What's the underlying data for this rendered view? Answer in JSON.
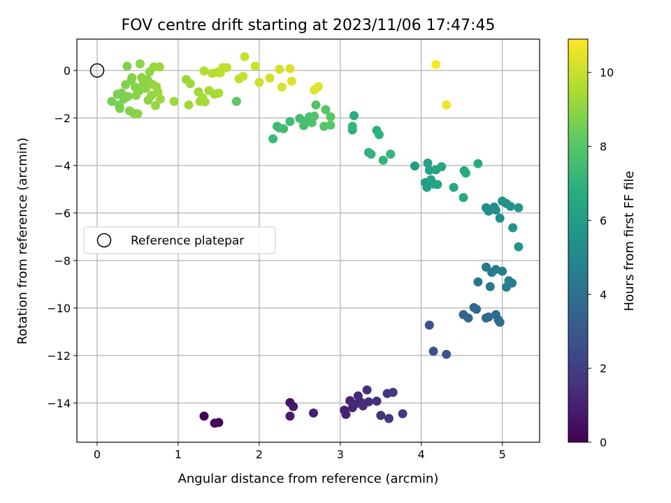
{
  "chart_data": {
    "type": "scatter",
    "title": "FOV centre drift starting at 2023/11/06 17:47:45",
    "xlabel": "Angular distance from reference (arcmin)",
    "ylabel": "Rotation from reference (arcmin)",
    "xlim": [
      -0.25,
      5.46
    ],
    "ylim": [
      -15.65,
      1.32
    ],
    "xticks": [
      0,
      1,
      2,
      3,
      4,
      5
    ],
    "yticks": [
      0,
      -2,
      -4,
      -6,
      -8,
      -10,
      -12,
      -14
    ],
    "grid": true,
    "legend": {
      "label": "Reference platepar",
      "position": "center-left"
    },
    "reference_point": {
      "x": 0,
      "y": 0
    },
    "colorbar": {
      "label": "Hours from first FF file",
      "min": 0,
      "max": 10.9,
      "ticks": [
        0,
        2,
        4,
        6,
        8,
        10
      ],
      "colormap": "viridis"
    },
    "series": [
      {
        "points": [
          [
            1.32,
            -14.55,
            0.05
          ],
          [
            1.45,
            -14.85,
            0.15
          ],
          [
            1.5,
            -14.82,
            0.2
          ],
          [
            2.38,
            -13.98,
            0.6
          ],
          [
            2.42,
            -14.15,
            0.7
          ],
          [
            2.38,
            -14.55,
            0.8
          ],
          [
            2.67,
            -14.42,
            0.9
          ],
          [
            3.05,
            -14.3,
            1.0
          ],
          [
            3.07,
            -14.48,
            1.05
          ],
          [
            3.12,
            -13.9,
            1.1
          ],
          [
            3.15,
            -14.2,
            1.15
          ],
          [
            3.18,
            -14.05,
            1.2
          ],
          [
            3.22,
            -13.7,
            1.25
          ],
          [
            3.25,
            -13.95,
            1.3
          ],
          [
            3.28,
            -14.12,
            1.35
          ],
          [
            3.33,
            -13.45,
            1.4
          ],
          [
            3.35,
            -13.95,
            1.45
          ],
          [
            3.45,
            -13.92,
            1.55
          ],
          [
            3.5,
            -14.52,
            1.6
          ],
          [
            3.58,
            -13.6,
            1.65
          ],
          [
            3.6,
            -14.65,
            1.7
          ],
          [
            3.65,
            -13.55,
            1.75
          ],
          [
            3.77,
            -14.45,
            1.8
          ],
          [
            4.1,
            -10.72,
            2.6
          ],
          [
            4.15,
            -11.82,
            2.7
          ],
          [
            4.31,
            -11.95,
            2.8
          ],
          [
            4.52,
            -10.28,
            3.5
          ],
          [
            4.58,
            -10.42,
            3.55
          ],
          [
            4.65,
            -9.98,
            3.6
          ],
          [
            4.68,
            -10.05,
            3.65
          ],
          [
            4.8,
            -10.42,
            3.7
          ],
          [
            4.83,
            -10.38,
            3.75
          ],
          [
            4.92,
            -10.28,
            3.8
          ],
          [
            4.95,
            -10.5,
            3.85
          ],
          [
            4.97,
            -10.6,
            3.9
          ],
          [
            4.7,
            -8.9,
            4.3
          ],
          [
            4.8,
            -8.28,
            4.35
          ],
          [
            4.85,
            -9.1,
            4.4
          ],
          [
            4.87,
            -8.5,
            4.45
          ],
          [
            4.92,
            -8.38,
            4.5
          ],
          [
            5.0,
            -8.45,
            4.55
          ],
          [
            5.05,
            -9.12,
            4.6
          ],
          [
            5.08,
            -8.85,
            4.65
          ],
          [
            5.12,
            -8.95,
            4.7
          ],
          [
            4.8,
            -5.78,
            5.2
          ],
          [
            4.83,
            -5.92,
            5.25
          ],
          [
            4.9,
            -5.75,
            5.3
          ],
          [
            4.92,
            -5.88,
            5.35
          ],
          [
            4.97,
            -6.22,
            5.4
          ],
          [
            5.0,
            -5.5,
            5.45
          ],
          [
            5.05,
            -5.6,
            5.5
          ],
          [
            5.1,
            -5.72,
            5.55
          ],
          [
            5.13,
            -6.62,
            5.6
          ],
          [
            5.2,
            -5.78,
            5.65
          ],
          [
            5.2,
            -7.42,
            5.7
          ],
          [
            3.92,
            -4.02,
            6.0
          ],
          [
            4.05,
            -4.72,
            6.05
          ],
          [
            4.07,
            -4.92,
            6.1
          ],
          [
            4.08,
            -3.9,
            6.15
          ],
          [
            4.1,
            -4.2,
            6.2
          ],
          [
            4.12,
            -4.6,
            6.25
          ],
          [
            4.15,
            -4.78,
            6.3
          ],
          [
            4.18,
            -4.18,
            6.35
          ],
          [
            4.2,
            -4.8,
            6.4
          ],
          [
            4.25,
            -4.05,
            6.45
          ],
          [
            4.4,
            -4.92,
            6.5
          ],
          [
            4.52,
            -5.35,
            6.55
          ],
          [
            4.53,
            -4.22,
            6.6
          ],
          [
            4.55,
            -4.32,
            6.65
          ],
          [
            4.7,
            -3.92,
            6.7
          ],
          [
            3.15,
            -2.5,
            6.8
          ],
          [
            3.17,
            -1.9,
            6.85
          ],
          [
            3.45,
            -2.52,
            6.9
          ],
          [
            3.48,
            -2.7,
            6.95
          ],
          [
            3.35,
            -3.45,
            7.0
          ],
          [
            3.38,
            -3.52,
            7.05
          ],
          [
            3.53,
            -3.78,
            7.1
          ],
          [
            3.62,
            -3.52,
            7.15
          ],
          [
            3.15,
            -2.35,
            7.2
          ],
          [
            2.17,
            -2.88,
            7.3
          ],
          [
            2.22,
            -2.35,
            7.35
          ],
          [
            2.25,
            -2.42,
            7.4
          ],
          [
            2.3,
            -2.45,
            7.45
          ],
          [
            2.38,
            -2.15,
            7.5
          ],
          [
            2.5,
            -2.02,
            7.55
          ],
          [
            2.55,
            -2.32,
            7.6
          ],
          [
            2.6,
            -2.08,
            7.65
          ],
          [
            2.62,
            -1.95,
            7.7
          ],
          [
            2.65,
            -2.2,
            7.75
          ],
          [
            2.68,
            -1.92,
            7.8
          ],
          [
            2.7,
            -1.45,
            7.85
          ],
          [
            2.8,
            -2.35,
            7.9
          ],
          [
            2.82,
            -1.65,
            7.95
          ],
          [
            2.88,
            -2.3,
            8.0
          ],
          [
            2.88,
            -1.95,
            8.05
          ],
          [
            1.72,
            -1.3,
            8.1
          ],
          [
            0.18,
            -1.3,
            8.6
          ],
          [
            0.25,
            -1.0,
            8.62
          ],
          [
            0.27,
            -1.45,
            8.64
          ],
          [
            0.28,
            -1.6,
            8.66
          ],
          [
            0.3,
            -0.95,
            8.68
          ],
          [
            0.33,
            -1.2,
            8.7
          ],
          [
            0.35,
            -0.6,
            8.72
          ],
          [
            0.37,
            0.18,
            8.74
          ],
          [
            0.38,
            -1.1,
            8.76
          ],
          [
            0.4,
            -1.7,
            8.78
          ],
          [
            0.42,
            -0.42,
            8.8
          ],
          [
            0.43,
            -0.3,
            8.82
          ],
          [
            0.45,
            -1.8,
            8.84
          ],
          [
            0.47,
            -0.7,
            8.86
          ],
          [
            0.48,
            -1.05,
            8.88
          ],
          [
            0.5,
            -1.82,
            8.9
          ],
          [
            0.52,
            -0.85,
            8.92
          ],
          [
            0.53,
            0.28,
            8.94
          ],
          [
            0.55,
            -0.3,
            8.96
          ],
          [
            0.57,
            -0.55,
            8.98
          ],
          [
            0.6,
            -0.75,
            9.0
          ],
          [
            0.62,
            -0.38,
            9.02
          ],
          [
            0.63,
            -1.25,
            9.04
          ],
          [
            0.65,
            -0.05,
            9.06
          ],
          [
            0.67,
            -1.05,
            9.08
          ],
          [
            0.68,
            -0.58,
            9.1
          ],
          [
            0.7,
            0.15,
            9.12
          ],
          [
            0.72,
            -1.48,
            9.14
          ],
          [
            0.73,
            -0.68,
            9.16
          ],
          [
            0.75,
            -0.9,
            9.18
          ],
          [
            0.77,
            0.15,
            9.2
          ],
          [
            0.78,
            -1.2,
            9.22
          ],
          [
            0.95,
            -1.3,
            9.24
          ],
          [
            1.1,
            -0.38,
            9.26
          ],
          [
            1.13,
            -1.45,
            9.28
          ],
          [
            1.15,
            -0.55,
            9.3
          ],
          [
            1.25,
            -0.9,
            9.32
          ],
          [
            1.27,
            -1.3,
            9.34
          ],
          [
            1.3,
            -1.15,
            9.36
          ],
          [
            1.33,
            -1.32,
            9.38
          ],
          [
            1.38,
            -0.85,
            9.4
          ],
          [
            1.45,
            -1.0,
            9.42
          ],
          [
            1.5,
            -0.95,
            9.44
          ],
          [
            1.32,
            -0.02,
            9.6
          ],
          [
            1.42,
            -0.12,
            9.65
          ],
          [
            1.48,
            -0.08,
            9.7
          ],
          [
            1.52,
            -0.1,
            9.75
          ],
          [
            1.55,
            0.12,
            9.8
          ],
          [
            1.6,
            0.12,
            9.85
          ],
          [
            1.75,
            -0.35,
            9.9
          ],
          [
            1.8,
            -0.25,
            9.95
          ],
          [
            1.82,
            0.58,
            10.0
          ],
          [
            1.95,
            0.18,
            10.05
          ],
          [
            2.0,
            -0.5,
            10.1
          ],
          [
            2.13,
            -0.32,
            10.15
          ],
          [
            2.25,
            0.05,
            10.2
          ],
          [
            2.28,
            -0.7,
            10.25
          ],
          [
            2.38,
            0.08,
            10.3
          ],
          [
            2.4,
            -0.45,
            10.35
          ],
          [
            2.68,
            -0.82,
            10.4
          ],
          [
            2.73,
            -0.68,
            10.45
          ],
          [
            4.31,
            -1.45,
            10.7
          ],
          [
            4.18,
            0.25,
            10.85
          ]
        ]
      }
    ]
  }
}
